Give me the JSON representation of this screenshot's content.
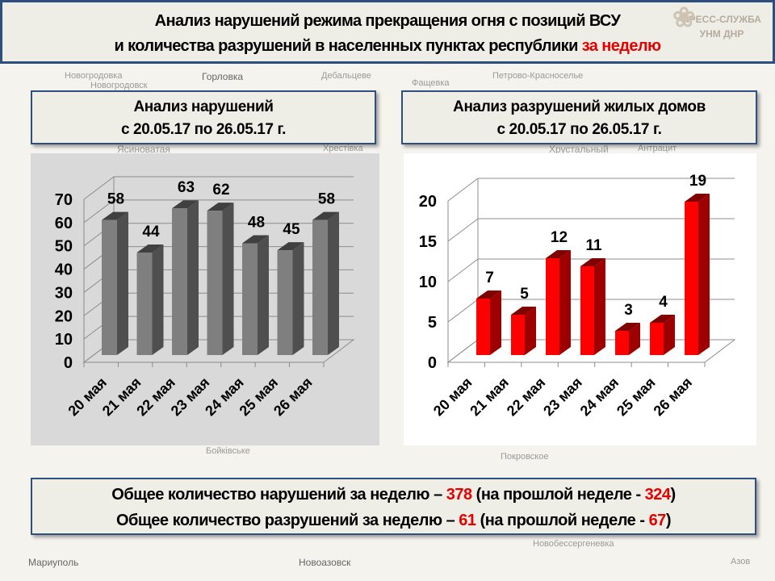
{
  "title": {
    "line1": "Анализ нарушений режима прекращения огня с позиций ВСУ",
    "line2_prefix": "и количества разрушений в населенных пунктах республики ",
    "line2_highlight": "за неделю"
  },
  "logo": {
    "line1": "ПРЕСС-СЛУЖБА",
    "line2": "УНМ ДНР"
  },
  "map_labels": [
    "Новогродовка",
    "Новогродовск",
    "Горловка",
    "Дебальцеве",
    "Фащевка",
    "Петрово-Красносельe",
    "Ясиноватая",
    "Хрестівка",
    "Хрустальный",
    "Антрацит",
    "Бойківське",
    "Покровское",
    "Новоазовск",
    "Мариуполь",
    "Новобессергеневка",
    "Азов"
  ],
  "left_header": {
    "line1": "Анализ нарушений",
    "line2": "с 20.05.17 по 26.05.17 г."
  },
  "right_header": {
    "line1": "Анализ разрушений жилых домов",
    "line2": "с 20.05.17 по 26.05.17 г."
  },
  "chart_data": [
    {
      "type": "bar",
      "style": "3d",
      "categories": [
        "20 мая",
        "21 мая",
        "22 мая",
        "23 мая",
        "24 мая",
        "25 мая",
        "26 мая"
      ],
      "values": [
        58,
        44,
        63,
        62,
        48,
        45,
        58
      ],
      "ylim": [
        0,
        70
      ],
      "yticks": [
        0,
        10,
        20,
        30,
        40,
        50,
        60,
        70
      ],
      "grid": true,
      "color": "#7f7f7f",
      "background": "#d9d9d9"
    },
    {
      "type": "bar",
      "style": "3d",
      "categories": [
        "20 мая",
        "21 мая",
        "22 мая",
        "23 мая",
        "24 мая",
        "25 мая",
        "26 мая"
      ],
      "values": [
        7,
        5,
        12,
        11,
        3,
        4,
        19
      ],
      "ylim": [
        0,
        20
      ],
      "yticks": [
        0,
        5,
        10,
        15,
        20
      ],
      "grid": true,
      "color": "#ff0000",
      "background": "#ffffff"
    }
  ],
  "summary": {
    "l1_a": "Общее количество нарушений за неделю – ",
    "l1_v": "378",
    "l1_b": " (на прошлой неделе - ",
    "l1_p": "324",
    "l1_c": ")",
    "l2_a": "Общее количество разрушений за неделю – ",
    "l2_v": "61",
    "l2_b": " (на прошлой неделе - ",
    "l2_p": "67",
    "l2_c": ")"
  }
}
